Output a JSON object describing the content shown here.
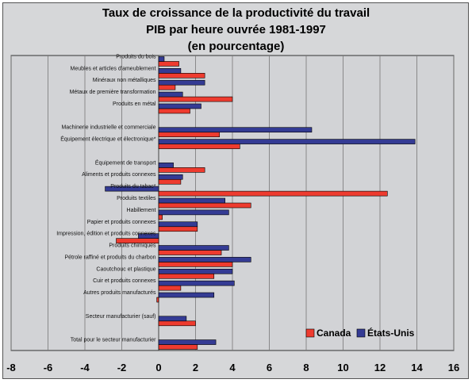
{
  "title_lines": [
    "Taux de croissance de la productivité du travail",
    "PIB par heure ouvrée  1981-1997",
    "(en pourcentage)"
  ],
  "chart_data": {
    "type": "bar",
    "orientation": "horizontal",
    "categories": [
      "Produits du bois",
      "Meubles et articles d'ameublement",
      "Minéraux non métalliques",
      "Métaux de première transformation",
      "Produits en métal",
      "",
      "Machinerie industrielle et commerciale",
      "Équipement électrique et électronique*",
      "",
      "Équipement de transport",
      "Aliments et produits connexes",
      "Produits du tabac*",
      "Produits textiles",
      "Habillement",
      "Papier et produits connexes",
      "Impression, édition et produits connexes",
      "Produits chimiques",
      "Pétrole raffiné et produits du charbon",
      "Caoutchouc et plastique",
      "Cuir et produits connexes",
      "Autres produits manufacturés",
      "",
      "Secteur manufacturier (sauf)",
      "",
      "Total pour le secteur manufacturier"
    ],
    "series": [
      {
        "name": "Canada",
        "color": "#ee3b2f",
        "values": [
          1.1,
          2.5,
          0.9,
          4.0,
          1.7,
          null,
          3.3,
          4.4,
          null,
          2.5,
          1.2,
          12.4,
          5.0,
          0.2,
          2.1,
          -2.3,
          3.4,
          4.0,
          3.0,
          1.2,
          -0.1,
          null,
          2.0,
          null,
          2.1
        ]
      },
      {
        "name": "États-Unis",
        "color": "#343b94",
        "values": [
          0.3,
          1.2,
          2.5,
          1.3,
          2.3,
          null,
          8.3,
          13.9,
          null,
          0.8,
          1.3,
          -2.9,
          3.6,
          3.8,
          2.1,
          -1.1,
          3.8,
          5.0,
          4.0,
          4.1,
          3.0,
          null,
          1.5,
          null,
          3.1
        ]
      }
    ],
    "xlim": [
      -8,
      16
    ],
    "x_ticks": [
      -8,
      -6,
      -4,
      -2,
      0,
      2,
      4,
      6,
      8,
      10,
      12,
      14,
      16
    ],
    "grid": true,
    "legend_position": "bottom-right"
  }
}
